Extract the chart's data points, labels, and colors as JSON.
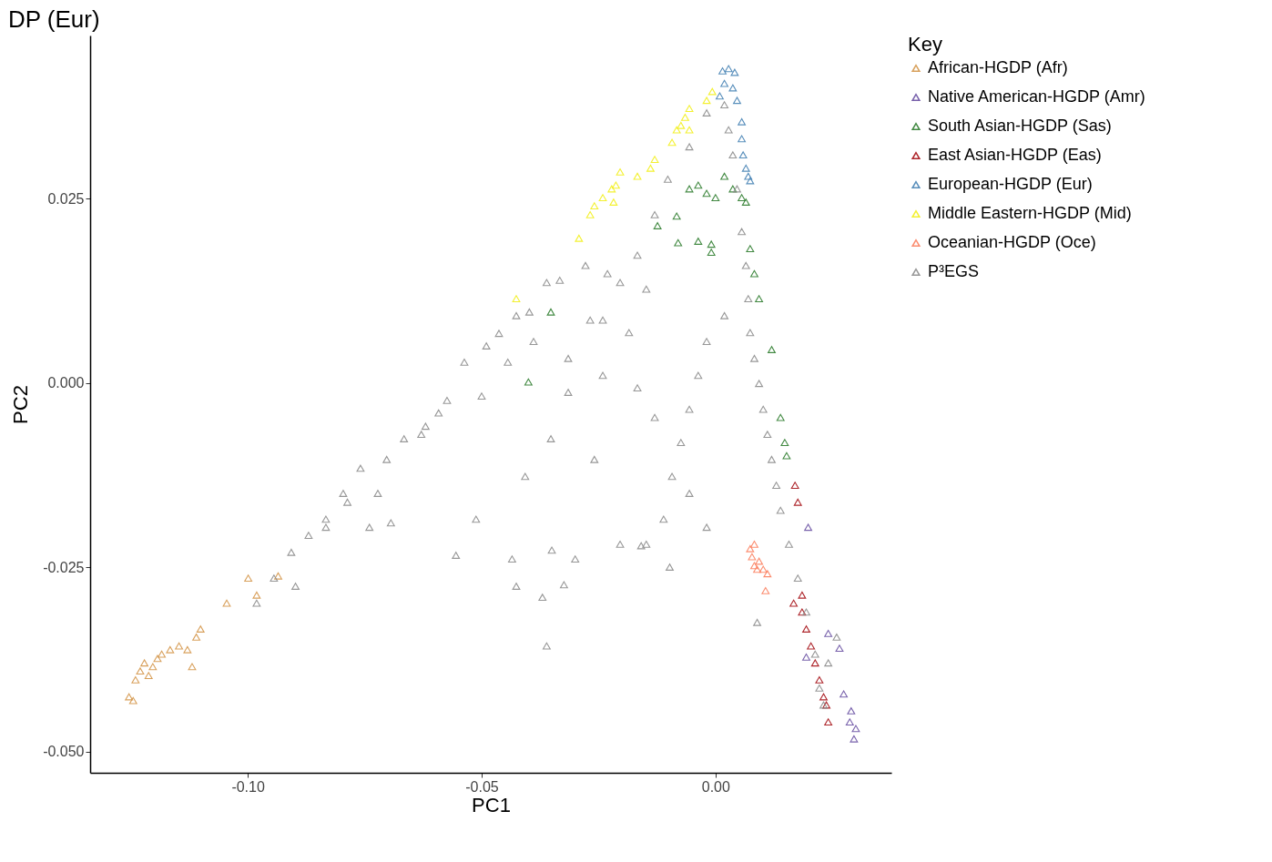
{
  "chart_data": {
    "type": "scatter",
    "title": "DP (Eur)",
    "xlabel": "PC1",
    "ylabel": "PC2",
    "legend_title": "Key",
    "legend": "right",
    "grid": false,
    "marker": "triangle",
    "xlim": [
      -0.1337,
      0.0376
    ],
    "ylim": [
      -0.0529,
      0.0471
    ],
    "xticks": [
      {
        "value": -0.1,
        "label": "-0.10"
      },
      {
        "value": -0.05,
        "label": "-0.05"
      },
      {
        "value": 0,
        "label": "0.00"
      }
    ],
    "yticks": [
      {
        "value": -0.05,
        "label": "-0.050"
      },
      {
        "value": -0.025,
        "label": "-0.025"
      },
      {
        "value": 0,
        "label": "0.000"
      },
      {
        "value": 0.025,
        "label": "0.025"
      }
    ],
    "series": [
      {
        "name": "African-HGDP (Afr)",
        "color": "#d4964a",
        "x": [
          -0.1254,
          -0.1245,
          -0.124,
          -0.123,
          -0.1221,
          -0.1212,
          -0.1203,
          -0.1193,
          -0.1184,
          -0.1166,
          -0.1147,
          -0.1129,
          -0.1119,
          -0.111,
          -0.1101,
          -0.1045,
          -0.0999,
          -0.0981,
          -0.0935
        ],
        "values": [
          -0.0426,
          -0.0431,
          -0.0403,
          -0.0391,
          -0.038,
          -0.0397,
          -0.0385,
          -0.0374,
          -0.0368,
          -0.0362,
          -0.0357,
          -0.0362,
          -0.0385,
          -0.0345,
          -0.0334,
          -0.0299,
          -0.0265,
          -0.0288,
          -0.0262
        ]
      },
      {
        "name": "Native American-HGDP (Amr)",
        "color": "#6a51a3",
        "x": [
          0.0198,
          0.0265,
          0.0274,
          0.029,
          0.0296,
          0.03,
          0.0194,
          0.0287,
          0.0241
        ],
        "values": [
          -0.0196,
          -0.036,
          -0.0422,
          -0.0445,
          -0.0483,
          -0.0469,
          -0.0372,
          -0.046,
          -0.034
        ]
      },
      {
        "name": "South Asian-HGDP (Sas)",
        "color": "#2e7d2e",
        "x": [
          -0.0056,
          -0.0037,
          -0.0019,
          0,
          0.0019,
          0.0037,
          0.0056,
          0.0065,
          -0.0124,
          -0.0083,
          -0.008,
          -0.0037,
          -0.0009,
          -0.0009,
          0.0083,
          0.0093,
          0.012,
          0.0139,
          0.0148,
          0.0152,
          -0.04,
          -0.0352,
          0.0074
        ],
        "values": [
          0.0263,
          0.0268,
          0.0257,
          0.0251,
          0.028,
          0.0263,
          0.0251,
          0.0245,
          0.0213,
          0.0226,
          0.019,
          0.0192,
          0.0188,
          0.0177,
          0.0148,
          0.0114,
          0.0045,
          -0.0047,
          -0.0081,
          -0.0099,
          0.0001,
          0.0096,
          0.0182
        ]
      },
      {
        "name": "East Asian-HGDP (Eas)",
        "color": "#a50f15",
        "x": [
          0.017,
          0.0176,
          0.0185,
          0.0194,
          0.0204,
          0.0213,
          0.0222,
          0.0231,
          0.0237,
          0.0241,
          0.0167,
          0.0185
        ],
        "values": [
          -0.0139,
          -0.0162,
          -0.0311,
          -0.0334,
          -0.0357,
          -0.038,
          -0.0403,
          -0.0426,
          -0.0437,
          -0.046,
          -0.0299,
          -0.0288
        ]
      },
      {
        "name": "European-HGDP (Eur)",
        "color": "#4682b4",
        "x": [
          0.0015,
          0.0028,
          0.0041,
          0.0019,
          0.0037,
          0.0009,
          0.0046,
          0.0056,
          0.0059,
          0.0065,
          0.007,
          0.0074,
          0.0056
        ],
        "values": [
          0.0423,
          0.0426,
          0.0421,
          0.0406,
          0.04,
          0.0389,
          0.0383,
          0.0331,
          0.0309,
          0.0291,
          0.028,
          0.0274,
          0.0354
        ]
      },
      {
        "name": "Middle Eastern-HGDP (Mid)",
        "color": "#f2ef1b",
        "x": [
          -0.0007,
          -0.0019,
          -0.0056,
          -0.0065,
          -0.0074,
          -0.0083,
          -0.0056,
          -0.0093,
          -0.013,
          -0.0139,
          -0.0167,
          -0.0204,
          -0.0213,
          -0.0222,
          -0.0241,
          -0.0259,
          -0.0268,
          -0.0218,
          -0.0292,
          -0.0426
        ],
        "values": [
          0.0395,
          0.0383,
          0.0372,
          0.036,
          0.0349,
          0.0343,
          0.0343,
          0.0326,
          0.0303,
          0.0291,
          0.028,
          0.0286,
          0.0268,
          0.0263,
          0.0251,
          0.024,
          0.0228,
          0.0245,
          0.0196,
          0.0114
        ]
      },
      {
        "name": "Oceanian-HGDP (Oce)",
        "color": "#fb8060",
        "x": [
          0.0074,
          0.0078,
          0.0083,
          0.0089,
          0.0093,
          0.0102,
          0.0111,
          0.0107,
          0.0083
        ],
        "values": [
          -0.0225,
          -0.0236,
          -0.0248,
          -0.0253,
          -0.0242,
          -0.0253,
          -0.0259,
          -0.0282,
          -0.0219
        ]
      },
      {
        "name": "P³EGS",
        "color": "#8c8c8c",
        "x": [
          -0.0981,
          -0.0944,
          -0.0907,
          -0.087,
          -0.0833,
          -0.0796,
          -0.0759,
          -0.0703,
          -0.0666,
          -0.062,
          -0.0592,
          -0.0537,
          -0.049,
          -0.0463,
          -0.0426,
          -0.0398,
          -0.0361,
          -0.0333,
          -0.0278,
          -0.0231,
          -0.0204,
          -0.0148,
          -0.0167,
          -0.013,
          -0.0102,
          -0.0056,
          -0.0019,
          0.0019,
          0.0028,
          0.0037,
          0.0046,
          0.0056,
          0.0065,
          0.007,
          0.0074,
          0.0083,
          0.0093,
          0.0102,
          0.0111,
          0.012,
          0.013,
          0.0139,
          0.0157,
          0.0176,
          0.0194,
          0.0213,
          0.0222,
          0.0231,
          0.0241,
          0.0259,
          0.0019,
          -0.0019,
          -0.0037,
          -0.0056,
          -0.0074,
          -0.0093,
          -0.0111,
          -0.0148,
          -0.0204,
          -0.0259,
          -0.0315,
          -0.0352,
          -0.0407,
          -0.0426,
          -0.037,
          -0.0324,
          -0.0555,
          -0.0512,
          -0.0435,
          -0.035,
          -0.03,
          -0.0159,
          -0.0098,
          0.0089,
          -0.0019,
          -0.0056,
          -0.013,
          -0.0167,
          -0.0241,
          -0.0315,
          -0.0389,
          -0.0444,
          -0.05,
          -0.0574,
          -0.0629,
          -0.0722,
          -0.074,
          -0.0694,
          -0.0898,
          -0.0833,
          -0.0787,
          -0.0361,
          -0.0241,
          -0.0268,
          -0.0185
        ],
        "values": [
          -0.0299,
          -0.0265,
          -0.023,
          -0.0207,
          -0.0185,
          -0.015,
          -0.0116,
          -0.0104,
          -0.0076,
          -0.0059,
          -0.0041,
          0.0028,
          0.005,
          0.0067,
          0.0091,
          0.0096,
          0.0136,
          0.0139,
          0.0159,
          0.0148,
          0.0136,
          0.0127,
          0.0173,
          0.0228,
          0.0276,
          0.032,
          0.0366,
          0.0377,
          0.0343,
          0.0309,
          0.0263,
          0.0205,
          0.0159,
          0.0114,
          0.0068,
          0.0033,
          -0.0001,
          -0.0036,
          -0.007,
          -0.0104,
          -0.0139,
          -0.0173,
          -0.0219,
          -0.0265,
          -0.0311,
          -0.0368,
          -0.0414,
          -0.0437,
          -0.038,
          -0.0345,
          0.0091,
          0.0056,
          0.001,
          -0.0036,
          -0.0081,
          -0.0127,
          -0.0185,
          -0.0219,
          -0.0219,
          -0.0104,
          -0.0013,
          -0.0076,
          -0.0127,
          -0.0276,
          -0.0291,
          -0.0274,
          -0.0234,
          -0.0185,
          -0.0239,
          -0.0227,
          -0.0239,
          -0.0221,
          -0.025,
          -0.0325,
          -0.0196,
          -0.015,
          -0.0047,
          -0.0007,
          0.001,
          0.0033,
          0.0056,
          0.0028,
          -0.0018,
          -0.0024,
          -0.007,
          -0.015,
          -0.0196,
          -0.019,
          -0.0276,
          -0.0196,
          -0.0162,
          -0.0357,
          0.0085,
          0.0085,
          0.0068
        ]
      }
    ]
  }
}
